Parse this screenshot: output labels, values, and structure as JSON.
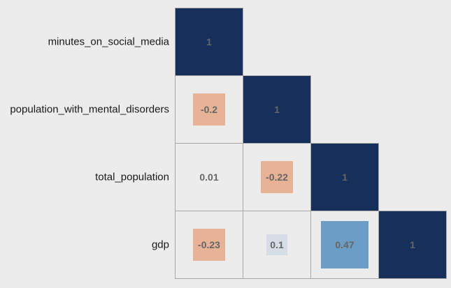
{
  "chart_data": {
    "type": "heatmap",
    "variables": [
      "minutes_on_social_media",
      "population_with_mental_disorders",
      "total_population",
      "gdp"
    ],
    "matrix": [
      [
        1,
        null,
        null,
        null
      ],
      [
        -0.2,
        1,
        null,
        null
      ],
      [
        0.01,
        -0.22,
        1,
        null
      ],
      [
        -0.23,
        0.1,
        0.47,
        1
      ]
    ],
    "value_labels": [
      [
        "1",
        "",
        "",
        ""
      ],
      [
        "-0.2",
        "1",
        "",
        ""
      ],
      [
        "0.01",
        "-0.22",
        "1",
        ""
      ],
      [
        "-0.23",
        "0.1",
        "0.47",
        "1"
      ]
    ],
    "lower_triangle_only": true,
    "square_size_scaled_by_abs_value": true,
    "color_range": [
      -1,
      1
    ],
    "colors": {
      "positive_max": "#16305b",
      "positive_mid": "#6a9ec6",
      "neutral": "#ececec",
      "negative": "#e8b296",
      "grid": "#a6a6a6",
      "value_text": "#666666"
    }
  }
}
